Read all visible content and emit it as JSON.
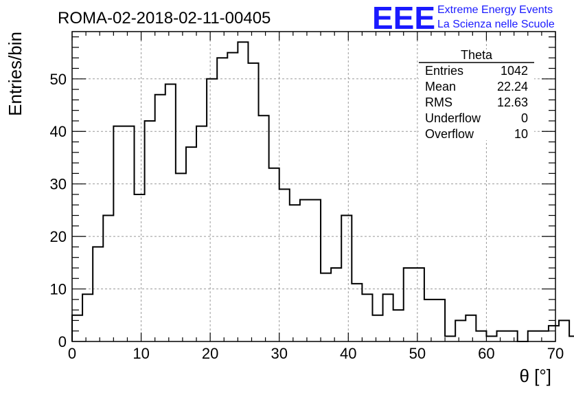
{
  "chart_data": {
    "type": "bar",
    "title": "ROMA-02-2018-02-11-00405",
    "xlabel": "θ [°]",
    "ylabel": "Entries/bin",
    "xlim": [
      0,
      70
    ],
    "ylim": [
      0,
      59
    ],
    "grid": true,
    "bin_width": 1.5,
    "bin_edges_start": 0,
    "x_ticks": [
      0,
      10,
      20,
      30,
      40,
      50,
      60,
      70
    ],
    "y_ticks": [
      0,
      10,
      20,
      30,
      40,
      50
    ],
    "values": [
      5,
      9,
      18,
      24,
      41,
      41,
      28,
      42,
      47,
      49,
      32,
      37,
      41,
      50,
      54,
      55,
      57,
      53,
      43,
      33,
      29,
      26,
      27,
      27,
      13,
      14,
      24,
      11,
      9,
      5,
      9,
      6,
      14,
      14,
      8,
      8,
      1,
      4,
      5,
      2,
      1,
      2,
      2,
      0,
      2,
      2,
      3,
      4,
      1
    ],
    "stats_box": {
      "name": "Theta",
      "rows": [
        {
          "label": "Entries",
          "value": "1042"
        },
        {
          "label": "Mean",
          "value": "22.24"
        },
        {
          "label": "RMS",
          "value": "12.63"
        },
        {
          "label": "Underflow",
          "value": "0"
        },
        {
          "label": "Overflow",
          "value": "10"
        }
      ]
    },
    "logo": {
      "mark": "EEE",
      "line1": "Extreme Energy Events",
      "line2": "La Scienza nelle Scuole"
    },
    "colors": {
      "line": "#000000",
      "grid": "#999999",
      "logo": "#1a1aff"
    }
  }
}
